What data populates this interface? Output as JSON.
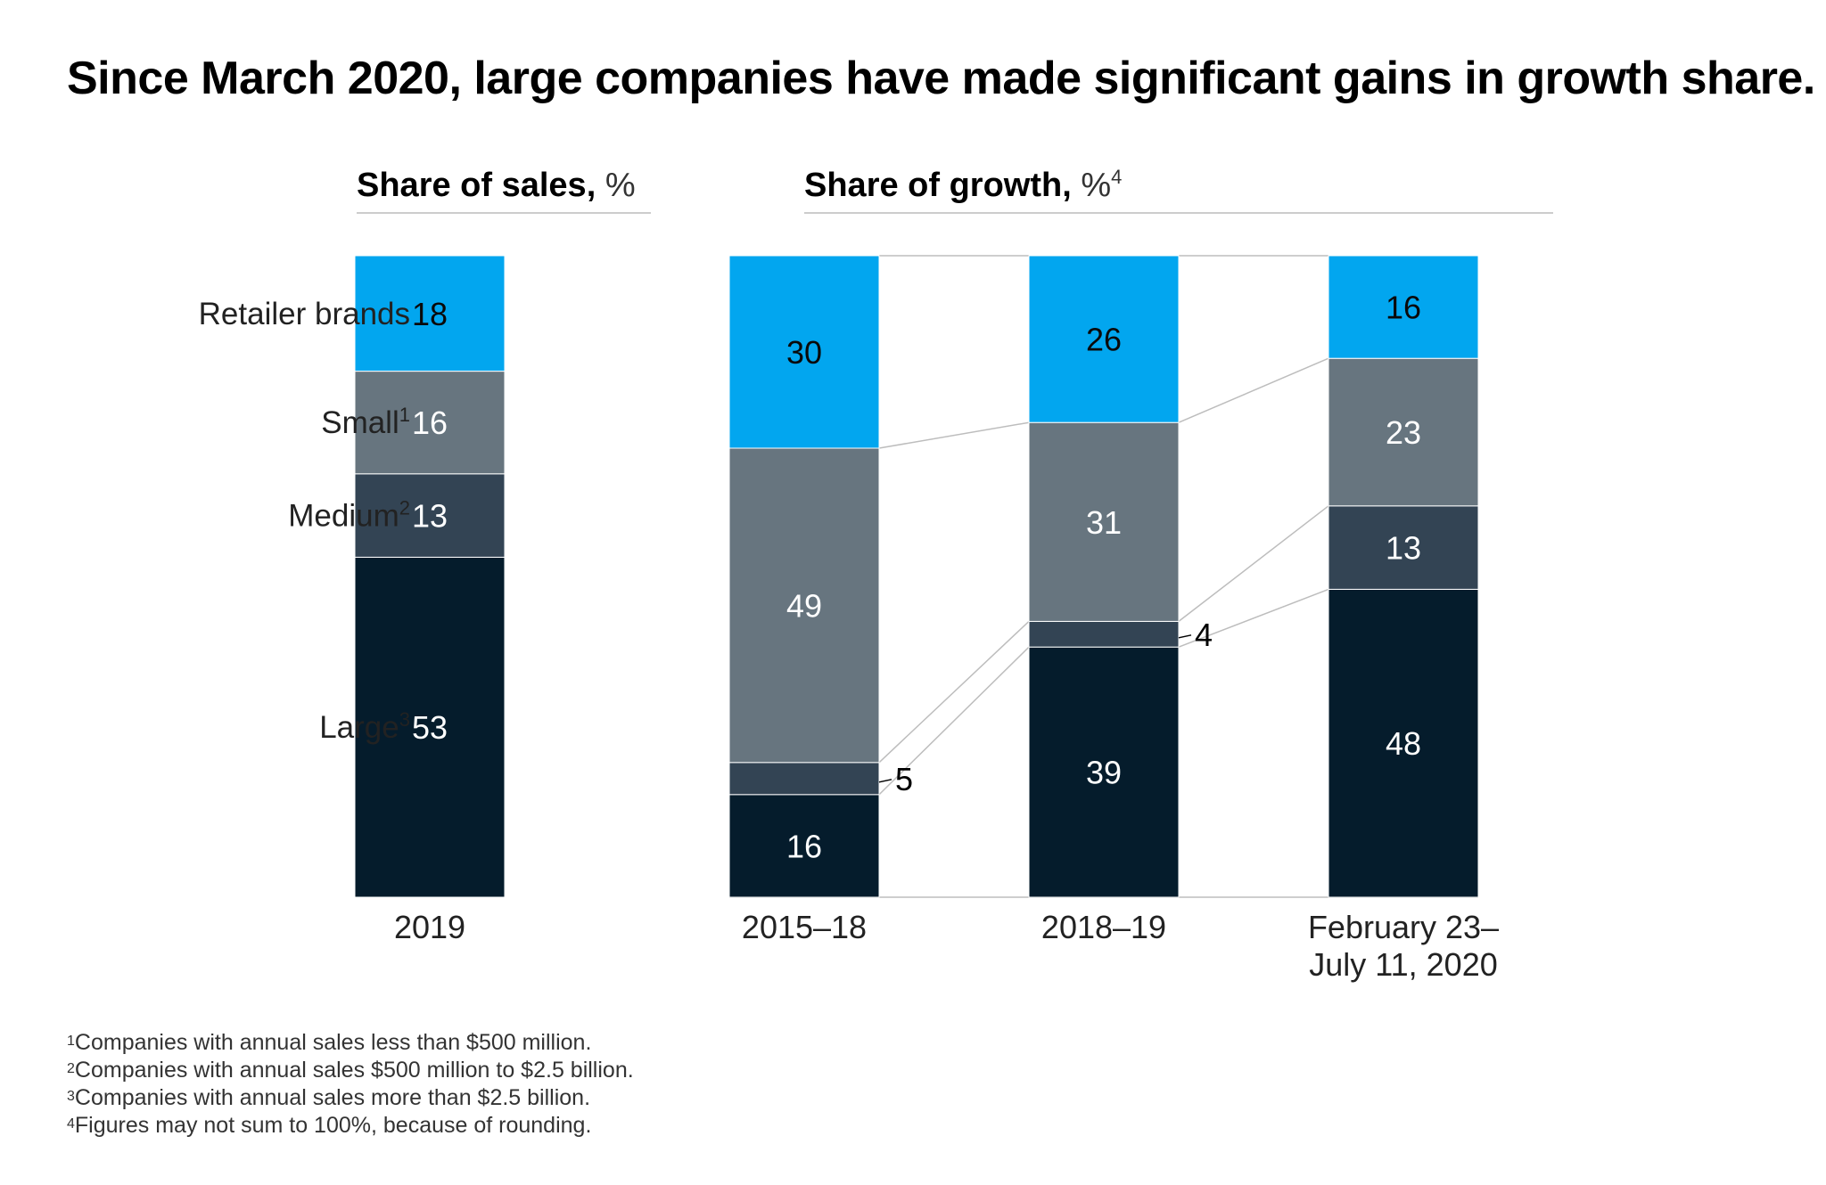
{
  "title": "Since March 2020, large companies have made significant gains in growth share.",
  "colors": {
    "retailer": "#02a6ef",
    "small": "#67757f",
    "medium": "#334454",
    "large": "#051c2c",
    "connector": "#bdbdbd",
    "rule": "#cccccc"
  },
  "chart_data": {
    "type": "bar",
    "stacked": true,
    "panels": [
      {
        "title": "Share of sales,",
        "unit": "%",
        "unit_sup": "",
        "categories": [
          "2019"
        ],
        "series": [
          {
            "name": "Large",
            "sup": "3",
            "values": [
              53
            ]
          },
          {
            "name": "Medium",
            "sup": "2",
            "values": [
              13
            ]
          },
          {
            "name": "Small",
            "sup": "1",
            "values": [
              16
            ]
          },
          {
            "name": "Retailer brands",
            "sup": "",
            "values": [
              18
            ]
          }
        ]
      },
      {
        "title": "Share of growth,",
        "unit": "%",
        "unit_sup": "4",
        "categories": [
          [
            "2015–18"
          ],
          [
            "2018–19"
          ],
          [
            "February 23–",
            "July 11, 2020"
          ]
        ],
        "series": [
          {
            "name": "Large",
            "values": [
              16,
              39,
              48
            ]
          },
          {
            "name": "Medium",
            "values": [
              5,
              4,
              13
            ]
          },
          {
            "name": "Small",
            "values": [
              49,
              31,
              23
            ]
          },
          {
            "name": "Retailer brands",
            "values": [
              30,
              26,
              16
            ]
          }
        ]
      }
    ]
  },
  "footnotes": [
    {
      "sup": "1",
      "text": "Companies with annual sales less than $500 million."
    },
    {
      "sup": "2",
      "text": "Companies with annual sales $500 million to $2.5 billion."
    },
    {
      "sup": "3",
      "text": "Companies with annual sales more than $2.5 billion."
    },
    {
      "sup": "4",
      "text": "Figures may not sum to 100%, because of rounding."
    }
  ]
}
